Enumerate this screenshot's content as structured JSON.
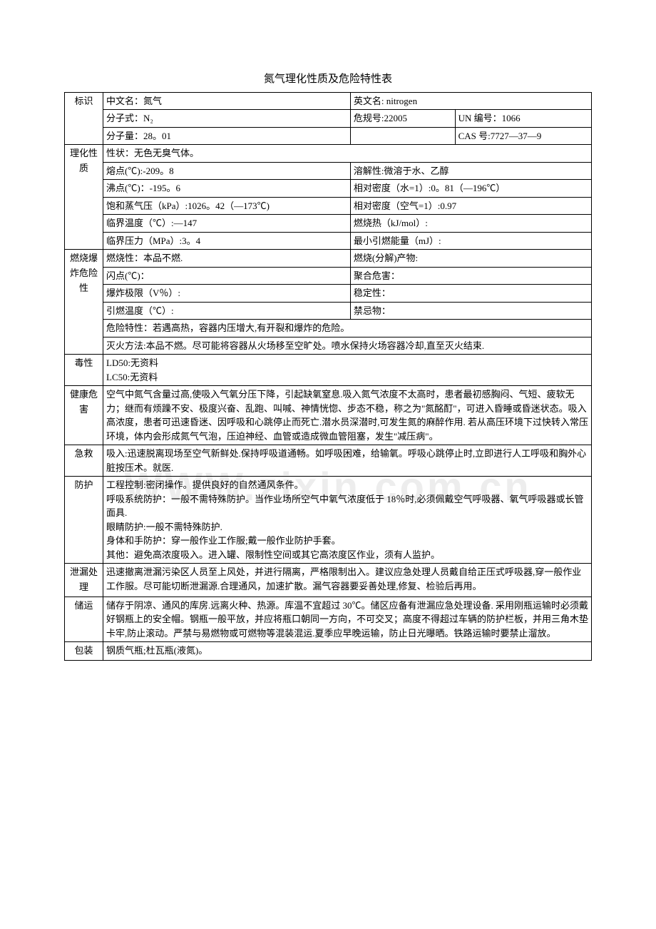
{
  "title": "氮气理化性质及危险特性表",
  "watermark": "WWW.zixin.com.cn",
  "sections": {
    "id": "标识",
    "phys": "理化性质",
    "fire": "燃烧爆炸危险性",
    "tox": "毒性",
    "health": "健康危害",
    "aid": "急救",
    "protect": "防护",
    "leak": "泄漏处理",
    "store": "储运",
    "pack": "包装"
  },
  "id": {
    "nameCnLabel": "中文名：",
    "nameCn": "氮气",
    "nameEnLabel": "英文名:",
    "nameEn": "nitrogen",
    "formulaLabel": "分子式：",
    "formula": "N₂",
    "hazCodeLabel": "危规号:",
    "hazCode": "22005",
    "unLabel": "UN 编号：",
    "un": "1066",
    "mwLabel": "分子量：",
    "mw": "28。01",
    "casLabel": "CAS 号:",
    "cas": "7727—37—9"
  },
  "phys": {
    "stateLabel": "性状：",
    "state": "无色无臭气体。",
    "mpLabel": "熔点(℃):",
    "mp": "-209。8",
    "solLabel": "溶解性:",
    "sol": "微溶于水、乙醇",
    "bpLabel": "沸点(℃)：",
    "bp": "-195。6",
    "densWLabel": "相对密度（水=1）:",
    "densW": "0。81（—196℃）",
    "vpLabel": "饱和蒸气压（kPa）:",
    "vp": "1026。42（—173℃)",
    "densALabel": "相对密度（空气=1）:",
    "densA": "0.97",
    "tcLabel": "临界温度（℃）:",
    "tc": "—147",
    "combHeatLabel": "燃烧热（kJ/mol）:",
    "pcLabel": "临界压力（MPa）:",
    "pc": "3。4",
    "minIgnLabel": "最小引燃能量（mJ）:"
  },
  "fire": {
    "flamLabel": "燃烧性：",
    "flam": "本品不燃.",
    "prodLabel": "燃烧(分解)产物:",
    "flashLabel": "闪点(℃)：",
    "polyLabel": "聚合危害：",
    "explLabel": "爆炸极限（V％）:",
    "stabLabel": "稳定性：",
    "ignTempLabel": "引燃温度（℃）:",
    "incompLabel": "禁忌物：",
    "hazLabel": "危险特性：",
    "haz": "若遇高热，容器内压增大,有开裂和爆炸的危险。",
    "extLabel": "灭火方法:",
    "ext": "本品不燃。尽可能将容器从火场移至空旷处。喷水保持火场容器冷却,直至灭火结束."
  },
  "tox": {
    "ld50": "LD50:无资料",
    "lc50": "LC50:无资料"
  },
  "health": "空气中氮气含量过高,使吸入气氧分压下降，引起缺氧窒息.吸入氮气浓度不太高时，患者最初感胸闷、气短、疲软无力；继而有烦躁不安、极度兴奋、乱跑、叫喊、神情恍惚、步态不稳，称之为\"氮酩酊\"，可进入昏睡或昏迷状态。吸入高浓度，患者可迅速昏迷、因呼吸和心跳停止而死亡.潜水员深潜时,可发生氮的麻醉作用. 若从高压环境下过快转入常压环境，体内会形成氮气气泡，压迫神经、血管或造成微血管阻塞，发生\"减压病\"。",
  "aid": "吸入:迅速脱离现场至空气新鲜处.保持呼吸道通畅。如呼吸困难，给输氧。呼吸心跳停止时,立即进行人工呼吸和胸外心脏按压术。就医.",
  "protect": {
    "l1": "工程控制:密闭操作。提供良好的自然通风条件。",
    "l2": "呼吸系统防护：一般不需特殊防护。当作业场所空气中氧气浓度低于 18％时,必须佩戴空气呼吸器、氧气呼吸器或长管面具.",
    "l3": "眼睛防护:一般不需特殊防护.",
    "l4": "身体和手防护：穿一般作业工作服;戴一般作业防护手套。",
    "l5": "其他：避免高浓度吸入。进入罐、限制性空间或其它高浓度区作业，须有人监护。"
  },
  "leak": "迅速撤离泄漏污染区人员至上风处，并进行隔离，严格限制出入。建议应急处理人员戴自给正压式呼吸器,穿一般作业工作服。尽可能切断泄漏源.合理通风，加速扩散。漏气容器要妥善处理,修复、检验后再用。",
  "store": "储存于阴凉、通风的库房.远离火种、热源。库温不宜超过 30℃。储区应备有泄漏应急处理设备.\n采用刚瓶运输时必须戴好钢瓶上的安全帽。钢瓶一般平放，并应将瓶口朝同一方向，不可交叉；高度不得超过车辆的防护栏板，并用三角木垫卡牢,防止滚动。严禁与易燃物或可燃物等混装混运.夏季应早晚运输，防止日光曝晒。铁路运输时要禁止溜放。",
  "pack": "钢质气瓶;杜瓦瓶(液氮)。"
}
